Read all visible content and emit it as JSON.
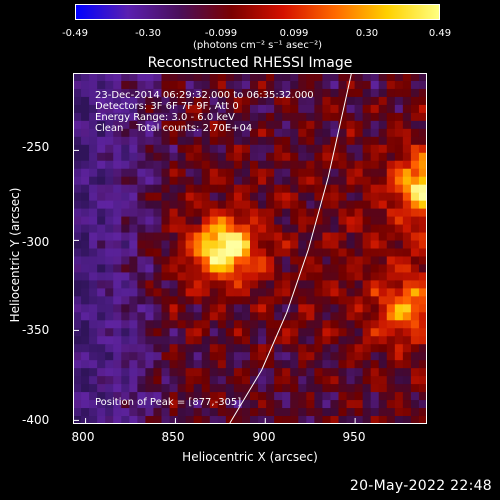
{
  "colors": {
    "background": "#000000",
    "text": "#ffffff",
    "colormap": [
      "#0000ff",
      "#5a1fb0",
      "#4a0f5a",
      "#7a0000",
      "#d41000",
      "#ff6a00",
      "#ffd000",
      "#ffff80"
    ]
  },
  "colorbar": {
    "ticks": [
      "-0.49",
      "-0.30",
      "-0.099",
      "0.099",
      "0.30",
      "0.49"
    ],
    "unit": "(photons cm⁻² s⁻¹ asec⁻²)"
  },
  "header": {
    "title": "Reconstructed RHESSI Image"
  },
  "info": {
    "line1": "23-Dec-2014 06:29:32.000 to 06:35:32.000",
    "line2": "Detectors: 3F 6F 7F 9F, Att 0",
    "line3": "Energy Range: 3.0 - 6.0 keV",
    "line4": "Clean    Total counts: 2.70E+04",
    "peak": "Position of Peak = [877,-305]"
  },
  "footer": {
    "timestamp": "20-May-2022 22:48"
  },
  "chart_data": {
    "type": "heatmap",
    "title": "Reconstructed RHESSI Image",
    "xlabel": "Heliocentric X (arcsec)",
    "ylabel": "Heliocentric Y (arcsec)",
    "xlim": [
      793,
      990
    ],
    "ylim": [
      -402,
      -207
    ],
    "xticks": [
      "800",
      "850",
      "900",
      "950"
    ],
    "yticks": [
      "-250",
      "-300",
      "-350",
      "-400"
    ],
    "xtick_values": [
      800,
      850,
      900,
      950
    ],
    "ytick_values": [
      -250,
      -300,
      -350,
      -400
    ],
    "peak": [
      877,
      -305
    ],
    "sources": [
      {
        "x": 877,
        "y": -305,
        "strength": 1.0
      },
      {
        "x": 990,
        "y": -270,
        "strength": 0.85
      },
      {
        "x": 979,
        "y": -338,
        "strength": 0.55
      }
    ],
    "limb_curve": [
      [
        880,
        -402
      ],
      [
        898,
        -372
      ],
      [
        912,
        -340
      ],
      [
        924,
        -305
      ],
      [
        935,
        -265
      ],
      [
        944,
        -225
      ],
      [
        948,
        -207
      ]
    ],
    "colorbar_range": [
      -0.49,
      0.49
    ]
  }
}
